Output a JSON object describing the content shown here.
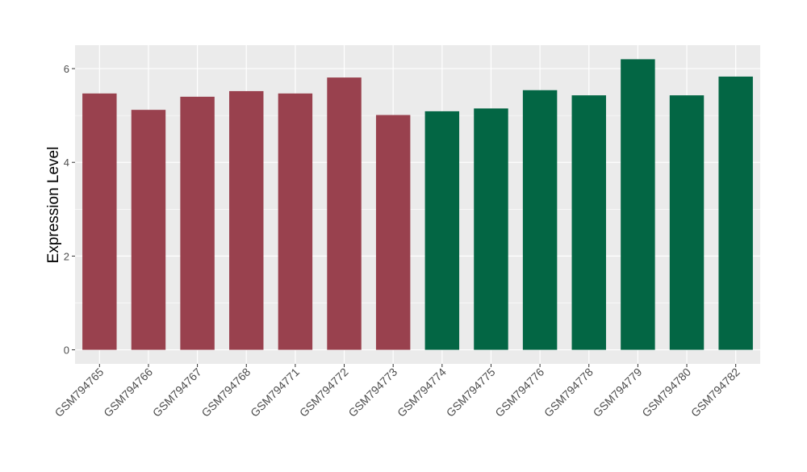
{
  "chart_data": {
    "type": "bar",
    "title": "",
    "xlabel": "",
    "ylabel": "Expression Level",
    "ylim": [
      -0.3,
      6.5
    ],
    "yticks": [
      0,
      2,
      4,
      6
    ],
    "grid": true,
    "categories": [
      "GSM794765",
      "GSM794766",
      "GSM794767",
      "GSM794768",
      "GSM794771",
      "GSM794772",
      "GSM794773",
      "GSM794774",
      "GSM794775",
      "GSM794776",
      "GSM794778",
      "GSM794779",
      "GSM794780",
      "GSM794782"
    ],
    "values": [
      5.47,
      5.12,
      5.4,
      5.52,
      5.47,
      5.81,
      5.01,
      5.09,
      5.15,
      5.54,
      5.43,
      6.2,
      5.43,
      5.83
    ],
    "bar_colors": [
      "#99414E",
      "#99414E",
      "#99414E",
      "#99414E",
      "#99414E",
      "#99414E",
      "#99414E",
      "#036644",
      "#036644",
      "#036644",
      "#036644",
      "#036644",
      "#036644",
      "#036644"
    ],
    "panel_background": "#EBEBEB",
    "grid_color": "#FFFFFF"
  }
}
